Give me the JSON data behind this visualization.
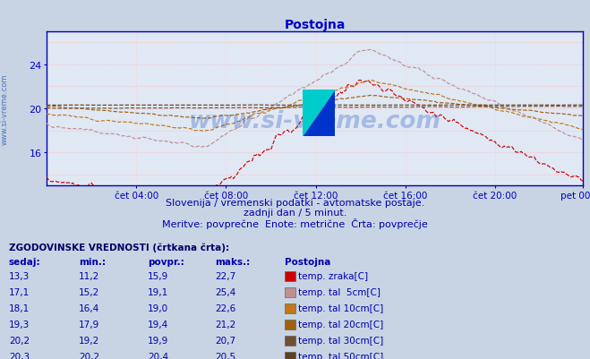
{
  "title": "Postojna",
  "bg_color": "#c8d4e4",
  "plot_bg_color": "#e0e8f4",
  "grid_h_color": "#ffaaaa",
  "grid_v_color": "#ffcccc",
  "axis_color": "#0000bb",
  "text_color": "#0000aa",
  "title_color": "#0000cc",
  "subtitle1": "Slovenija / vremenski podatki - avtomatske postaje.",
  "subtitle2": "zadnji dan / 5 minut.",
  "subtitle3": "Meritve: povprečne  Enote: metrične  Črta: povprečje",
  "xlabel_ticks": [
    "čet 04:00",
    "čet 08:00",
    "čet 12:00",
    "čet 16:00",
    "čet 20:00",
    "pet 00:00"
  ],
  "yticks": [
    16,
    20,
    24
  ],
  "ylim": [
    13.0,
    27.0
  ],
  "xlim": [
    0,
    287
  ],
  "xtick_positions": [
    48,
    96,
    144,
    192,
    240,
    287
  ],
  "hist_title": "ZGODOVINSKE VREDNOSTI (črtkana črta):",
  "hist_headers": [
    "sedaj:",
    "min.:",
    "povpr.:",
    "maks.:",
    "Postojna"
  ],
  "hist_data": [
    {
      "sedaj": "13,3",
      "min": "11,2",
      "povpr": "15,9",
      "maks": "22,7",
      "label": "temp. zraka[C]",
      "color": "#cc0000"
    },
    {
      "sedaj": "17,1",
      "min": "15,2",
      "povpr": "19,1",
      "maks": "25,4",
      "label": "temp. tal  5cm[C]",
      "color": "#c09090"
    },
    {
      "sedaj": "18,1",
      "min": "16,4",
      "povpr": "19,0",
      "maks": "22,6",
      "label": "temp. tal 10cm[C]",
      "color": "#c07818"
    },
    {
      "sedaj": "19,3",
      "min": "17,9",
      "povpr": "19,4",
      "maks": "21,2",
      "label": "temp. tal 20cm[C]",
      "color": "#a06010"
    },
    {
      "sedaj": "20,2",
      "min": "19,2",
      "povpr": "19,9",
      "maks": "20,7",
      "label": "temp. tal 30cm[C]",
      "color": "#705030"
    },
    {
      "sedaj": "20,3",
      "min": "20,2",
      "povpr": "20,4",
      "maks": "20,5",
      "label": "temp. tal 50cm[C]",
      "color": "#604020"
    }
  ],
  "series_colors": [
    "#cc0000",
    "#c09090",
    "#c07818",
    "#a06010",
    "#705030",
    "#604020"
  ],
  "n_points": 288,
  "watermark": "www.si-vreme.com",
  "side_watermark": "www.si-vreme.com"
}
